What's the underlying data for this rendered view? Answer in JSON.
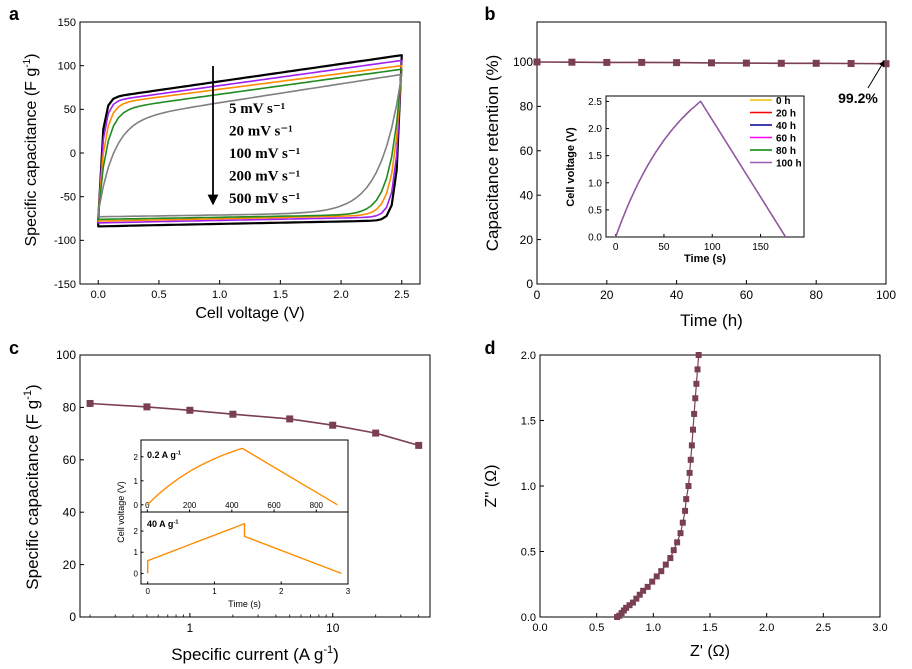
{
  "figure": {
    "panels": [
      "a",
      "b",
      "c",
      "d"
    ]
  },
  "chart_data": [
    {
      "id": "a",
      "type": "line",
      "panel_label": "a",
      "xlabel": "Cell voltage (V)",
      "ylabel": "Specific capacitance (F g",
      "ylabel_sup": "-1",
      "ylabel_end": ")",
      "xlim": [
        -0.15,
        2.65
      ],
      "ylim": [
        -150,
        150
      ],
      "xticks": [
        0.0,
        0.5,
        1.0,
        1.5,
        2.0,
        2.5
      ],
      "xtick_labels": [
        "0.0",
        "0.5",
        "1.0",
        "1.5",
        "2.0",
        "2.5"
      ],
      "yticks": [
        -150,
        -100,
        -50,
        0,
        50,
        100,
        150
      ],
      "ytick_labels": [
        "-150",
        "-100",
        "-50",
        "0",
        "50",
        "100",
        "150"
      ],
      "arrow_direction": "down",
      "legend": [
        "5 mV s⁻¹",
        "20 mV s⁻¹",
        "100 mV s⁻¹",
        "200 mV s⁻¹",
        "500 mV s⁻¹"
      ],
      "series": [
        {
          "name": "5 mV s⁻¹",
          "color": "#000000",
          "top_start": 62,
          "top_end": 112,
          "bot_start": -77,
          "bot_end": -84,
          "rise": 0.03,
          "lw": 2.2
        },
        {
          "name": "20 mV s⁻¹",
          "color": "#a020f0",
          "top_start": 58,
          "top_end": 106,
          "bot_start": -73,
          "bot_end": -80,
          "rise": 0.05,
          "lw": 1.6
        },
        {
          "name": "100 mV s⁻¹",
          "color": "#ff8c00",
          "top_start": 55,
          "top_end": 100,
          "bot_start": -71,
          "bot_end": -78,
          "rise": 0.09,
          "lw": 1.6
        },
        {
          "name": "200 mV s⁻¹",
          "color": "#228b22",
          "top_start": 48,
          "top_end": 96,
          "bot_start": -70,
          "bot_end": -76,
          "rise": 0.14,
          "lw": 1.6
        },
        {
          "name": "500 mV s⁻¹",
          "color": "#808080",
          "top_start": 36,
          "top_end": 90,
          "bot_start": -68,
          "bot_end": -73,
          "rise": 0.3,
          "lw": 1.6
        }
      ]
    },
    {
      "id": "b",
      "type": "line",
      "panel_label": "b",
      "xlabel": "Time (h)",
      "ylabel": "Capacitance retention (%)",
      "xlim": [
        0,
        100
      ],
      "ylim": [
        0,
        118
      ],
      "xticks": [
        0,
        20,
        40,
        60,
        80,
        100
      ],
      "xtick_labels": [
        "0",
        "20",
        "40",
        "60",
        "80",
        "100"
      ],
      "yticks": [
        0,
        20,
        40,
        60,
        80,
        100
      ],
      "ytick_labels": [
        "0",
        "20",
        "40",
        "60",
        "80",
        "100"
      ],
      "series": [
        {
          "name": "retention",
          "color": "#7b3f55",
          "x": [
            0,
            10,
            20,
            30,
            40,
            50,
            60,
            70,
            80,
            90,
            100
          ],
          "y": [
            100,
            99.9,
            99.8,
            99.8,
            99.7,
            99.6,
            99.5,
            99.4,
            99.4,
            99.3,
            99.2
          ]
        }
      ],
      "annotation": "99.2%",
      "inset": {
        "xlabel": "Time (s)",
        "ylabel": "Cell voltage (V)",
        "xlim": [
          -10,
          195
        ],
        "ylim": [
          0,
          2.6
        ],
        "xticks": [
          0,
          50,
          100,
          150
        ],
        "xtick_labels": [
          "0",
          "50",
          "100",
          "150"
        ],
        "yticks": [
          0.0,
          0.5,
          1.0,
          1.5,
          2.0,
          2.5
        ],
        "ytick_labels": [
          "0.0",
          "0.5",
          "1.0",
          "1.5",
          "2.0",
          "2.5"
        ],
        "legend": [
          {
            "label": "0 h",
            "color": "#f2c200"
          },
          {
            "label": "20 h",
            "color": "#ff0000"
          },
          {
            "label": "40 h",
            "color": "#00008b"
          },
          {
            "label": "60 h",
            "color": "#ff00ff"
          },
          {
            "label": "80 h",
            "color": "#008000"
          },
          {
            "label": "100 h",
            "color": "#9b59b6"
          }
        ],
        "charge_end_s": 88,
        "discharge_end_s": 176,
        "peak_v": 2.5
      }
    },
    {
      "id": "c",
      "type": "line",
      "panel_label": "c",
      "xlabel": "Specific current (A g",
      "xlabel_sup": "-1",
      "xlabel_end": ")",
      "ylabel": "Specific capacitance (F g",
      "ylabel_sup": "-1",
      "ylabel_end": ")",
      "xscale": "log",
      "xlim": [
        0.17,
        48
      ],
      "ylim": [
        0,
        100
      ],
      "xticks": [
        1,
        10
      ],
      "xtick_labels": [
        "1",
        "10"
      ],
      "yticks": [
        0,
        20,
        40,
        60,
        80,
        100
      ],
      "ytick_labels": [
        "0",
        "20",
        "40",
        "60",
        "80",
        "100"
      ],
      "series": [
        {
          "name": "capacitance",
          "color": "#7b3f55",
          "x": [
            0.2,
            0.5,
            1,
            2,
            5,
            10,
            20,
            40
          ],
          "y": [
            81.5,
            80.2,
            78.9,
            77.4,
            75.6,
            73.2,
            70.2,
            65.5
          ]
        }
      ],
      "inset": {
        "ylabel": "Cell voltage (V)",
        "xlabel": "Time (s)",
        "top": {
          "label": "0.2 A g",
          "label_sup": "-1",
          "xlim": [
            -30,
            950
          ],
          "ylim": [
            -0.3,
            2.7
          ],
          "xticks": [
            0,
            200,
            400,
            600,
            800
          ],
          "xtick_labels": [
            "0",
            "200",
            "400",
            "600",
            "800"
          ],
          "yticks": [
            0,
            1,
            2
          ],
          "ytick_labels": [
            "0",
            "1",
            "2"
          ],
          "charge_end_s": 450,
          "discharge_end_s": 900,
          "peak_v": 2.35,
          "color": "#ff8c00"
        },
        "bottom": {
          "label": "40 A g",
          "label_sup": "-1",
          "xlim": [
            -0.1,
            3.0
          ],
          "ylim": [
            -0.5,
            2.9
          ],
          "xticks": [
            0,
            1,
            2,
            3
          ],
          "xtick_labels": [
            "0",
            "1",
            "2",
            "3"
          ],
          "yticks": [
            0,
            1,
            2
          ],
          "ytick_labels": [
            "0",
            "1",
            "2"
          ],
          "ir_drop_v": 0.6,
          "charge_end_s": 1.45,
          "discharge_end_s": 2.9,
          "peak_v": 2.35,
          "color": "#ff8c00"
        }
      }
    },
    {
      "id": "d",
      "type": "scatter",
      "panel_label": "d",
      "xlabel": "Z' (Ω)",
      "ylabel": "Z'' (Ω)",
      "xlim": [
        0,
        3.0
      ],
      "ylim": [
        0,
        2.0
      ],
      "xticks": [
        0.0,
        0.5,
        1.0,
        1.5,
        2.0,
        2.5,
        3.0
      ],
      "xtick_labels": [
        "0.0",
        "0.5",
        "1.0",
        "1.5",
        "2.0",
        "2.5",
        "3.0"
      ],
      "yticks": [
        0.0,
        0.5,
        1.0,
        1.5,
        2.0
      ],
      "ytick_labels": [
        "0.0",
        "0.5",
        "1.0",
        "1.5",
        "2.0"
      ],
      "series": [
        {
          "name": "nyquist",
          "color": "#7b3f55",
          "x": [
            0.68,
            0.7,
            0.72,
            0.74,
            0.76,
            0.79,
            0.82,
            0.85,
            0.88,
            0.91,
            0.95,
            0.99,
            1.03,
            1.07,
            1.11,
            1.15,
            1.18,
            1.21,
            1.24,
            1.26,
            1.28,
            1.29,
            1.31,
            1.32,
            1.33,
            1.34,
            1.35,
            1.36,
            1.37,
            1.38,
            1.39,
            1.4
          ],
          "y": [
            0.0,
            0.01,
            0.03,
            0.05,
            0.07,
            0.09,
            0.11,
            0.14,
            0.17,
            0.2,
            0.23,
            0.27,
            0.31,
            0.35,
            0.4,
            0.45,
            0.51,
            0.57,
            0.64,
            0.72,
            0.81,
            0.9,
            1.0,
            1.1,
            1.2,
            1.31,
            1.43,
            1.55,
            1.67,
            1.78,
            1.89,
            2.0
          ]
        }
      ]
    }
  ]
}
